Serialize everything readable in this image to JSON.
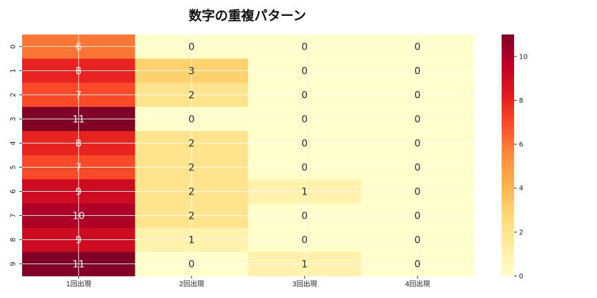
{
  "chart_data": {
    "type": "heatmap",
    "title": "数字の重複パターン",
    "xlabel": "",
    "ylabel": "",
    "x_categories": [
      "1回出現",
      "2回出現",
      "3回出現",
      "4回出現"
    ],
    "y_categories": [
      "0",
      "1",
      "2",
      "3",
      "4",
      "5",
      "6",
      "7",
      "8",
      "9"
    ],
    "values": [
      [
        6,
        0,
        0,
        0
      ],
      [
        8,
        3,
        0,
        0
      ],
      [
        7,
        2,
        0,
        0
      ],
      [
        11,
        0,
        0,
        0
      ],
      [
        8,
        2,
        0,
        0
      ],
      [
        7,
        2,
        0,
        0
      ],
      [
        9,
        2,
        1,
        0
      ],
      [
        10,
        2,
        0,
        0
      ],
      [
        9,
        1,
        0,
        0
      ],
      [
        11,
        0,
        1,
        0
      ]
    ],
    "value_range": [
      0,
      11
    ],
    "colormap": "YlOrRd",
    "colorbar_ticks": [
      0,
      2,
      4,
      6,
      8,
      10
    ],
    "grid": true,
    "annotations": true
  }
}
